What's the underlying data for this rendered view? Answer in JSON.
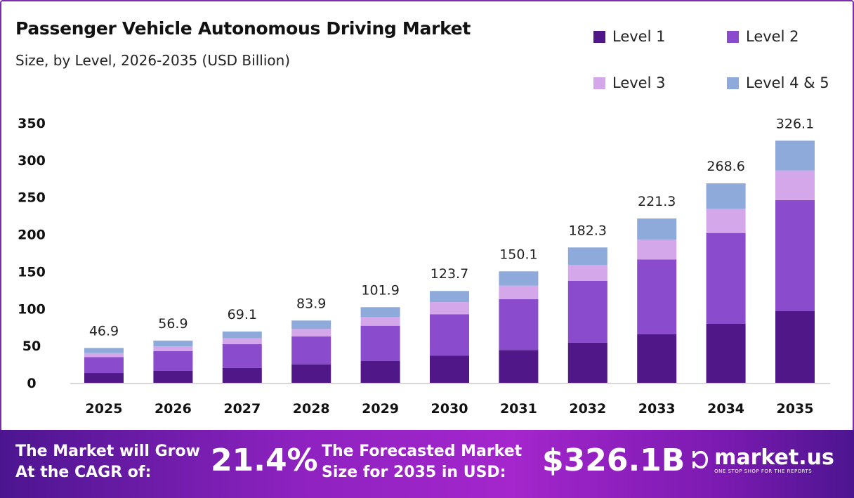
{
  "header": {
    "title": "Passenger Vehicle Autonomous Driving Market",
    "subtitle": "Size, by Level, 2026-2035 (USD Billion)"
  },
  "chart_data": {
    "type": "bar",
    "stacked": true,
    "title": "Passenger Vehicle Autonomous Driving Market",
    "subtitle": "Size, by Level, 2026-2035 (USD Billion)",
    "categories": [
      "2025",
      "2026",
      "2027",
      "2028",
      "2029",
      "2030",
      "2031",
      "2032",
      "2033",
      "2034",
      "2035"
    ],
    "series": [
      {
        "name": "Level 1",
        "color": "#4f1787",
        "values": [
          13.2,
          16.4,
          19.9,
          24.9,
          29.3,
          36.4,
          44.2,
          54.2,
          65.3,
          79.5,
          96.5
        ]
      },
      {
        "name": "Level 2",
        "color": "#8a4ccc",
        "values": [
          21.5,
          26.2,
          32.1,
          37.5,
          47.6,
          56.0,
          68.4,
          83.0,
          100.9,
          122.3,
          149.5
        ]
      },
      {
        "name": "Level 3",
        "color": "#d4a6ea",
        "values": [
          5.3,
          6.3,
          7.9,
          10.2,
          12.0,
          16.3,
          18.3,
          21.4,
          26.8,
          32.5,
          40.0
        ]
      },
      {
        "name": "Level 4 & 5",
        "color": "#8eaadb",
        "values": [
          6.9,
          8.0,
          9.2,
          11.3,
          13.0,
          15.0,
          19.2,
          23.7,
          28.3,
          34.3,
          40.1
        ]
      }
    ],
    "totals": [
      "46.9",
      "56.9",
      "69.1",
      "83.9",
      "101.9",
      "123.7",
      "150.1",
      "182.3",
      "221.3",
      "268.6",
      "326.1"
    ],
    "yticks": [
      "0",
      "50",
      "100",
      "150",
      "200",
      "250",
      "300",
      "350"
    ],
    "ylim": [
      0,
      350
    ],
    "xlabel": "",
    "ylabel": "",
    "grid": false,
    "legend_position": "top-right"
  },
  "footer": {
    "cagr_label_1": "The Market will Grow",
    "cagr_label_2": "At the CAGR of:",
    "cagr_value": "21.4%",
    "size_label_1": "The Forecasted Market",
    "size_label_2": "Size for 2035 in USD:",
    "size_value": "$326.1B",
    "brand_name": "market.us",
    "brand_tagline": "ONE STOP SHOP FOR THE REPORTS"
  }
}
